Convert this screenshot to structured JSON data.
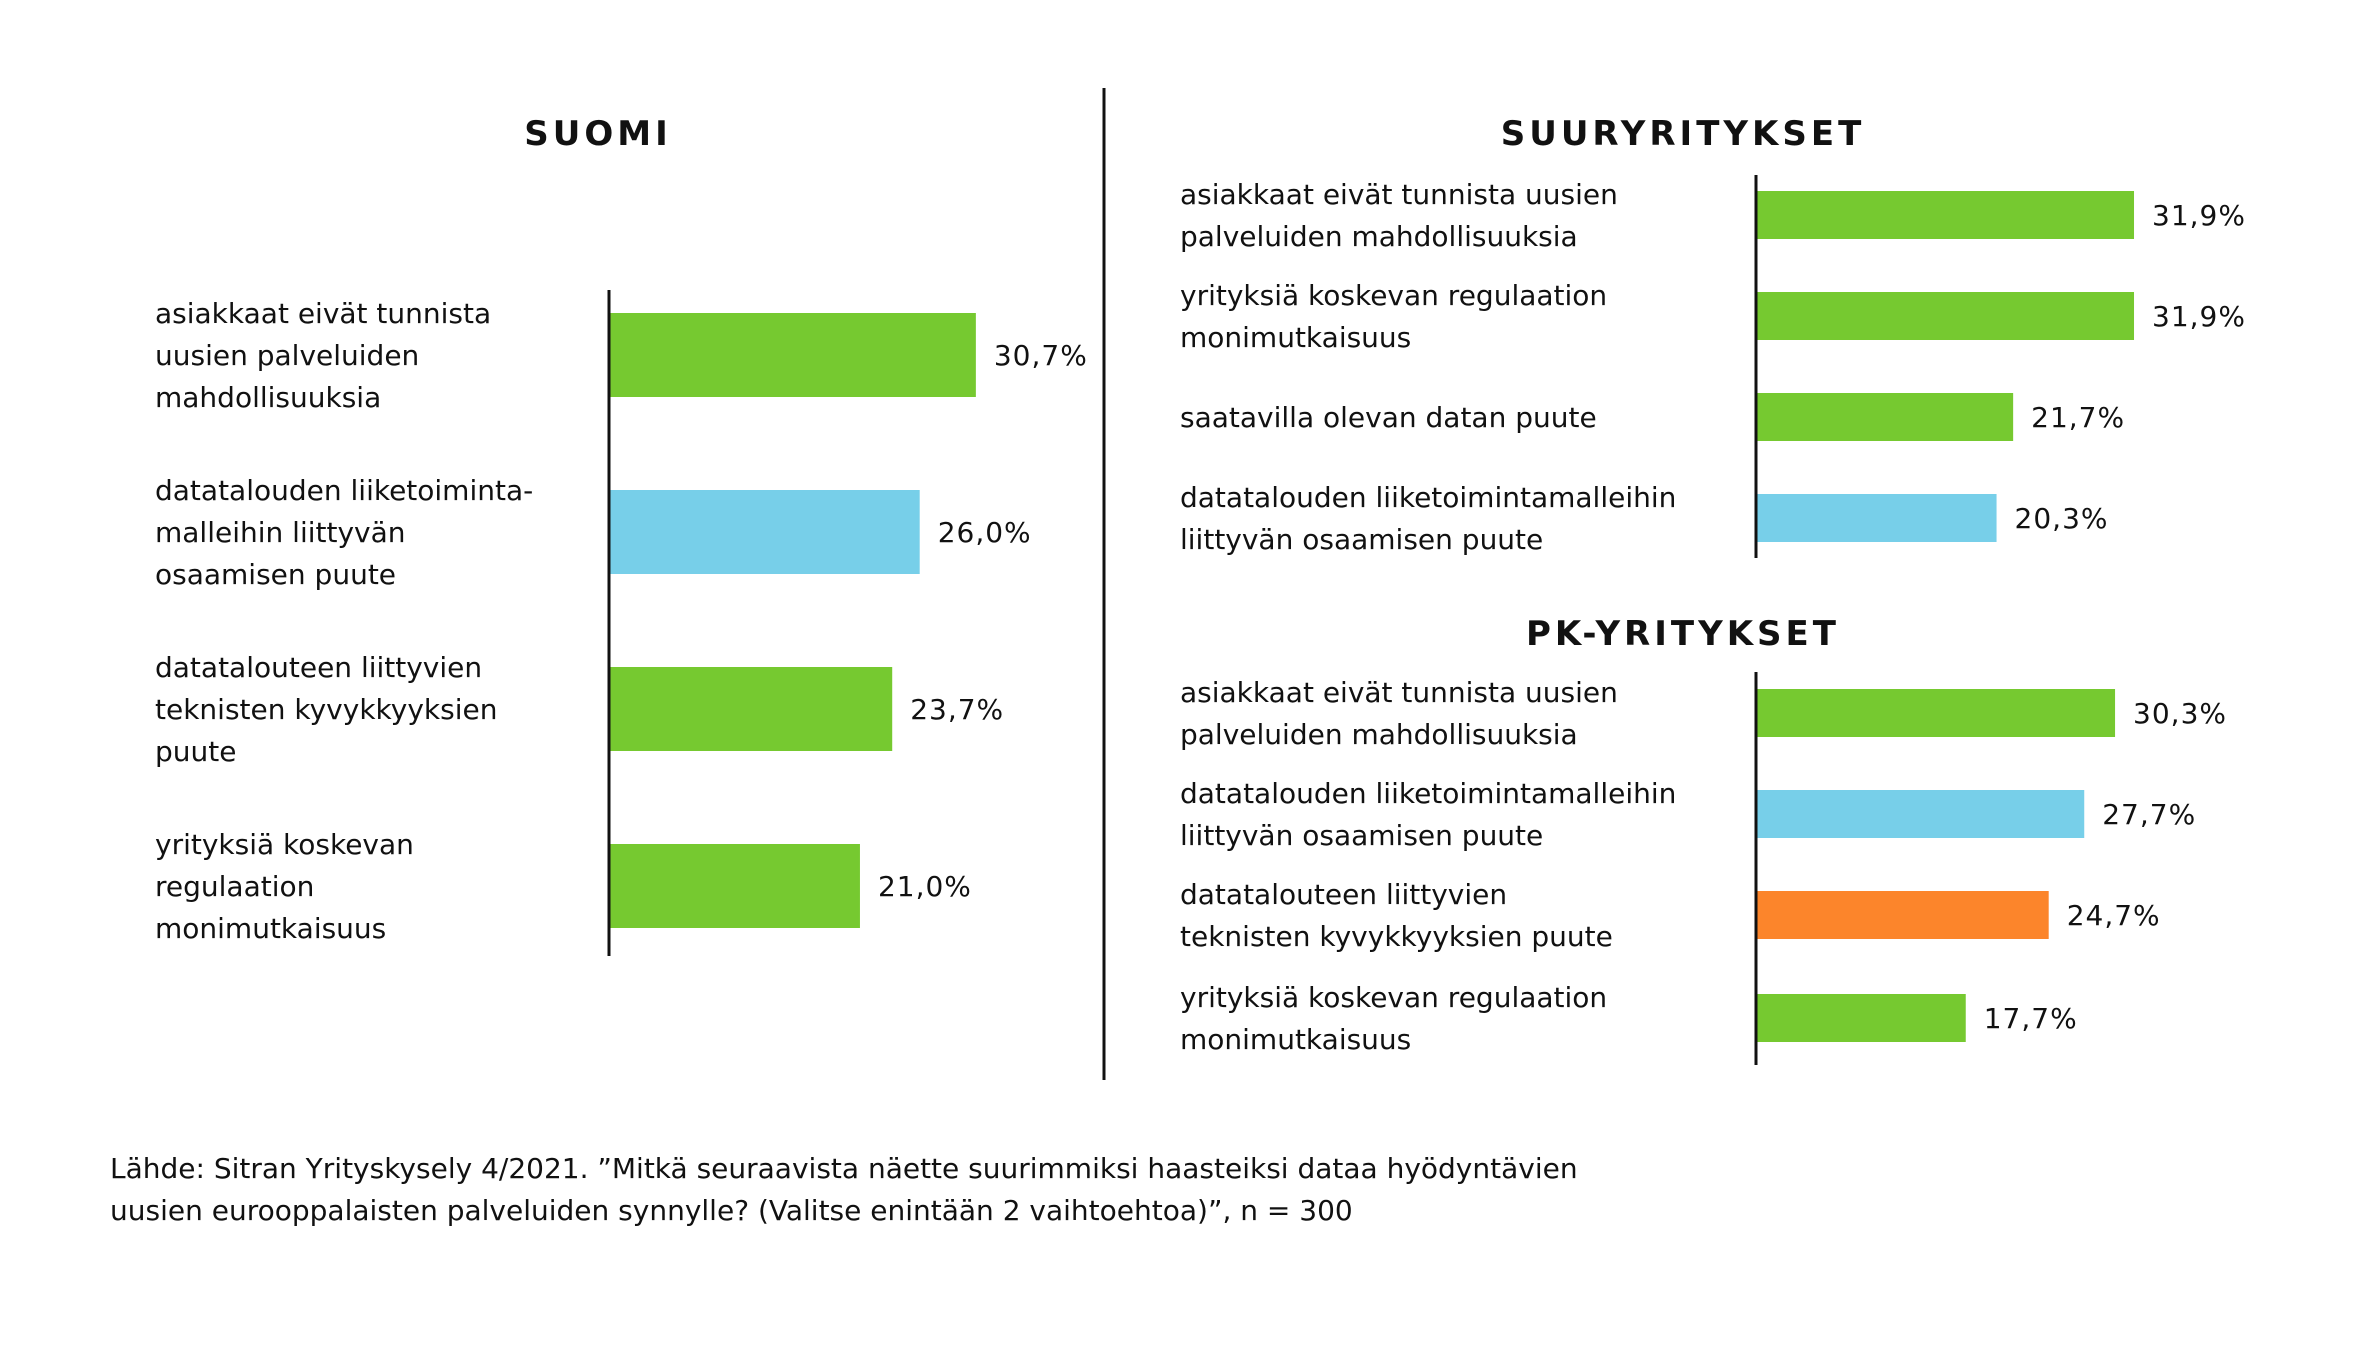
{
  "colors": {
    "green": "#76c930",
    "blue": "#77cfe9",
    "orange": "#fc852b",
    "axis": "#111111",
    "text": "#111111"
  },
  "chart_data": [
    {
      "type": "bar",
      "orientation": "horizontal",
      "title": "SUOMI",
      "unit": "%",
      "categories": [
        "asiakkaat eivät tunnista uusien palveluiden mahdollisuuksia",
        "datatalouden liiketoiminta-malleihin liittyvän osaamisen puute",
        "datatalouteen liittyvien teknisten kyvykkyyksien puute",
        "yrityksiä koskevan regulaation monimutkaisuus"
      ],
      "category_lines": [
        [
          "asiakkaat eivät tunnista",
          "uusien palveluiden",
          "mahdollisuuksia"
        ],
        [
          "datatalouden liiketoiminta-",
          "malleihin liittyvän",
          "osaamisen puute"
        ],
        [
          "datatalouteen liittyvien",
          "teknisten kyvykkyyksien",
          "puute"
        ],
        [
          "yrityksiä koskevan",
          "regulaation",
          "monimutkaisuus"
        ]
      ],
      "values": [
        30.7,
        26.0,
        23.7,
        21.0
      ],
      "value_labels": [
        "30,7%",
        "26,0%",
        "23,7%",
        "21,0%"
      ],
      "bar_colors": [
        "green",
        "blue",
        "green",
        "green"
      ]
    },
    {
      "type": "bar",
      "orientation": "horizontal",
      "title": "SUURYRITYKSET",
      "unit": "%",
      "categories": [
        "asiakkaat eivät tunnista uusien palveluiden mahdollisuuksia",
        "yrityksiä koskevan regulaation monimutkaisuus",
        "saatavilla olevan datan puute",
        "datatalouden liiketoimintamalleihin liittyvän osaamisen puute"
      ],
      "category_lines": [
        [
          "asiakkaat eivät tunnista uusien",
          "palveluiden mahdollisuuksia"
        ],
        [
          "yrityksiä koskevan regulaation",
          "monimutkaisuus"
        ],
        [
          "saatavilla olevan datan puute"
        ],
        [
          "datatalouden liiketoimintamalleihin",
          "liittyvän osaamisen puute"
        ]
      ],
      "values": [
        31.9,
        31.9,
        21.7,
        20.3
      ],
      "value_labels": [
        "31,9%",
        "31,9%",
        "21,7%",
        "20,3%"
      ],
      "bar_colors": [
        "green",
        "green",
        "green",
        "blue"
      ]
    },
    {
      "type": "bar",
      "orientation": "horizontal",
      "title": "PK-YRITYKSET",
      "unit": "%",
      "categories": [
        "asiakkaat eivät tunnista uusien palveluiden mahdollisuuksia",
        "datatalouden liiketoimintamalleihin liittyvän osaamisen puute",
        "datatalouteen liittyvien teknisten kyvykkyyksien puute",
        "yrityksiä koskevan regulaation monimutkaisuus"
      ],
      "category_lines": [
        [
          "asiakkaat eivät tunnista uusien",
          "palveluiden mahdollisuuksia"
        ],
        [
          "datatalouden liiketoimintamalleihin",
          "liittyvän osaamisen puute"
        ],
        [
          "datatalouteen liittyvien",
          "teknisten kyvykkyyksien puute"
        ],
        [
          "yrityksiä koskevan regulaation",
          "monimutkaisuus"
        ]
      ],
      "values": [
        30.3,
        27.7,
        24.7,
        17.7
      ],
      "value_labels": [
        "30,3%",
        "27,7%",
        "24,7%",
        "17,7%"
      ],
      "bar_colors": [
        "green",
        "blue",
        "orange",
        "green"
      ]
    }
  ],
  "source": {
    "line1": "Lähde: Sitran Yrityskysely 4/2021. ”Mitkä seuraavista näette suurimmiksi haasteiksi dataa hyödyntävien",
    "line2": "uusien eurooppalaisten palveluiden synnylle? (Valitse enintään 2 vaihtoehtoa)”, n = 300"
  }
}
